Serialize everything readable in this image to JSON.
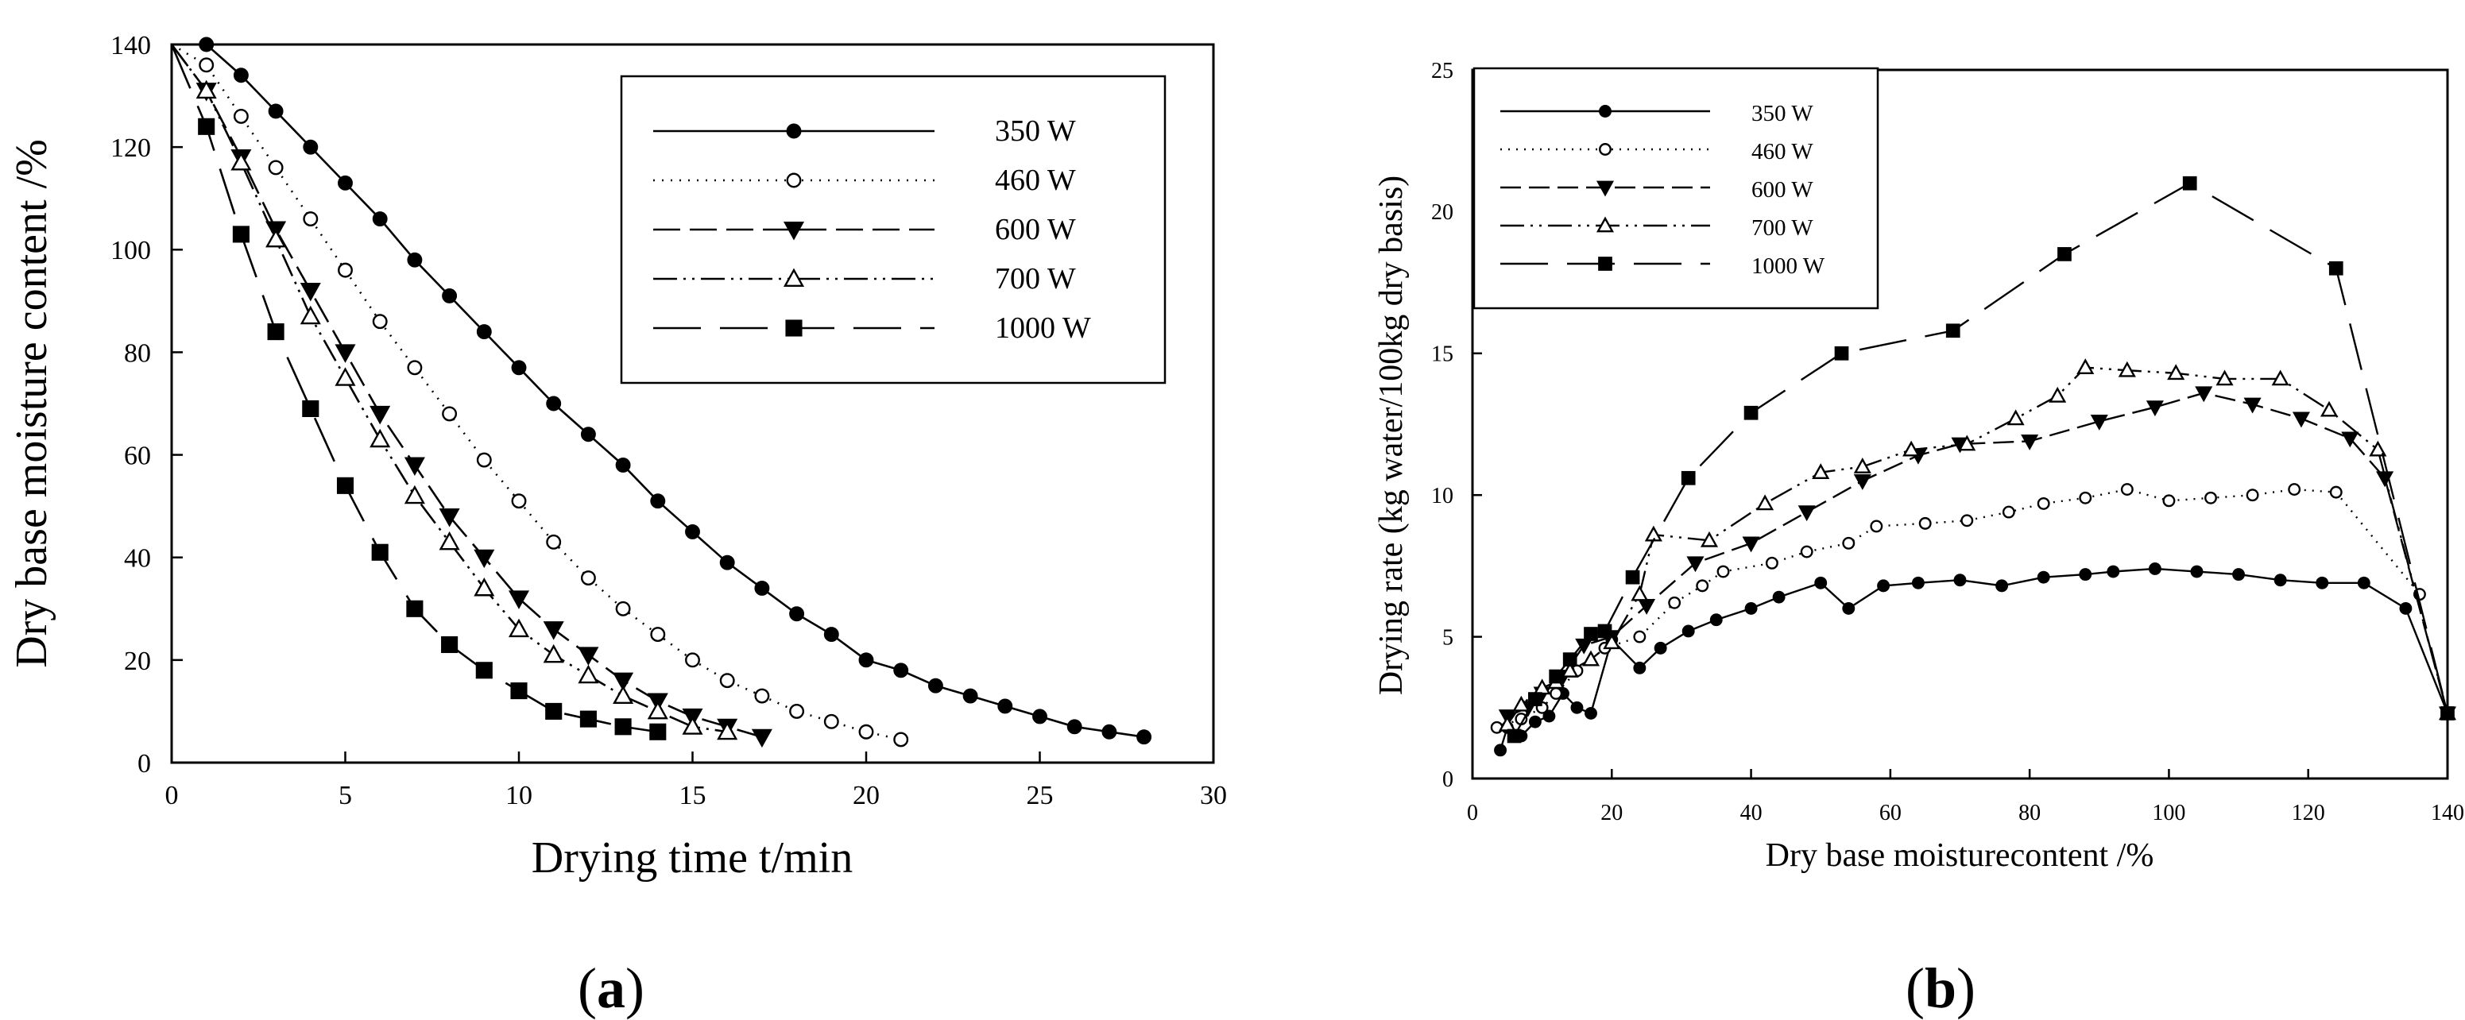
{
  "chart_data": [
    {
      "panel": "(a)",
      "panel_letter": "a",
      "type": "line",
      "title": "",
      "xlabel": "Drying time t/min",
      "ylabel": "Dry base moisture content /%",
      "xlim": [
        0,
        30
      ],
      "ylim": [
        0,
        140
      ],
      "xticks": [
        0,
        5,
        10,
        15,
        20,
        25,
        30
      ],
      "yticks": [
        0,
        20,
        40,
        60,
        80,
        100,
        120,
        140
      ],
      "grid": false,
      "legend_position": "top-right",
      "series": [
        {
          "name": "350 W",
          "marker": "filled-circle",
          "dash": "",
          "x": [
            0,
            1,
            2,
            3,
            4,
            5,
            6,
            7,
            8,
            9,
            10,
            11,
            12,
            13,
            14,
            15,
            16,
            17,
            18,
            19,
            20,
            21,
            22,
            23,
            24,
            25,
            26,
            27,
            28
          ],
          "y": [
            140,
            140,
            134,
            127,
            120,
            113,
            106,
            98,
            91,
            84,
            77,
            70,
            64,
            58,
            51,
            45,
            39,
            34,
            29,
            25,
            20,
            18,
            15,
            13,
            11,
            9,
            7,
            6,
            5
          ]
        },
        {
          "name": "460 W",
          "marker": "open-circle",
          "dash": "2 9",
          "x": [
            0,
            1,
            2,
            3,
            4,
            5,
            6,
            7,
            8,
            9,
            10,
            11,
            12,
            13,
            14,
            15,
            16,
            17,
            18,
            19,
            20,
            21
          ],
          "y": [
            140,
            136,
            126,
            116,
            106,
            96,
            86,
            77,
            68,
            59,
            51,
            43,
            36,
            30,
            25,
            20,
            16,
            13,
            10,
            8,
            6,
            4.5
          ]
        },
        {
          "name": "600 W",
          "marker": "filled-triangle-down",
          "dash": "34 12",
          "x": [
            0,
            1,
            2,
            3,
            4,
            5,
            6,
            7,
            8,
            9,
            10,
            11,
            12,
            13,
            14,
            15,
            16,
            17
          ],
          "y": [
            140,
            131,
            118,
            104,
            92,
            80,
            68,
            58,
            48,
            40,
            32,
            26,
            21,
            16,
            12,
            9,
            7,
            5
          ]
        },
        {
          "name": "700 W",
          "marker": "open-triangle-up",
          "dash": "30 8 3 8 3 8",
          "x": [
            0,
            1,
            2,
            3,
            4,
            5,
            6,
            7,
            8,
            9,
            10,
            11,
            12,
            13,
            14,
            15,
            16
          ],
          "y": [
            140,
            131,
            117,
            102,
            87,
            75,
            63,
            52,
            43,
            34,
            26,
            21,
            17,
            13,
            10,
            7,
            6
          ]
        },
        {
          "name": "1000 W",
          "marker": "filled-square",
          "dash": "60 24",
          "x": [
            0,
            1,
            2,
            3,
            4,
            5,
            6,
            7,
            8,
            9,
            10,
            11,
            12,
            13,
            14
          ],
          "y": [
            140,
            124,
            103,
            84,
            69,
            54,
            41,
            30,
            23,
            18,
            14,
            10,
            8.5,
            7,
            6
          ]
        }
      ]
    },
    {
      "panel": "(b)",
      "panel_letter": "b",
      "type": "line",
      "title": "",
      "xlabel": "Dry base moisturecontent /%",
      "ylabel": "Drying rate  (kg water/100kg dry basis)",
      "xlim": [
        0,
        140
      ],
      "ylim": [
        0,
        25
      ],
      "xticks": [
        0,
        20,
        40,
        60,
        80,
        100,
        120,
        140
      ],
      "yticks": [
        0,
        5,
        10,
        15,
        20,
        25
      ],
      "grid": false,
      "legend_position": "top-left",
      "series": [
        {
          "name": "350 W",
          "marker": "filled-circle",
          "dash": "",
          "x": [
            4,
            5,
            7,
            9,
            11,
            13,
            15,
            17,
            20,
            24,
            27,
            31,
            35,
            40,
            44,
            50,
            54,
            59,
            64,
            70,
            76,
            82,
            88,
            92,
            98,
            104,
            110,
            116,
            122,
            128,
            134,
            140
          ],
          "y": [
            1.0,
            1.8,
            1.5,
            2.0,
            2.2,
            3.0,
            2.5,
            2.3,
            4.9,
            3.9,
            4.6,
            5.2,
            5.6,
            6.0,
            6.4,
            6.9,
            6.0,
            6.8,
            6.9,
            7.0,
            6.8,
            7.1,
            7.2,
            7.3,
            7.4,
            7.3,
            7.2,
            7.0,
            6.9,
            6.9,
            6.0,
            2.3
          ]
        },
        {
          "name": "460 W",
          "marker": "open-circle",
          "dash": "2 8",
          "x": [
            3.5,
            7,
            10,
            12,
            15,
            19,
            24,
            29,
            33,
            36,
            43,
            48,
            54,
            58,
            65,
            71,
            77,
            82,
            88,
            94,
            100,
            106,
            112,
            118,
            124,
            136
          ],
          "y": [
            1.8,
            2.1,
            2.5,
            3.0,
            3.8,
            4.6,
            5.0,
            6.2,
            6.8,
            7.3,
            7.6,
            8.0,
            8.3,
            8.9,
            9.0,
            9.1,
            9.4,
            9.7,
            9.9,
            10.2,
            9.8,
            9.9,
            10.0,
            10.2,
            10.1,
            6.5
          ]
        },
        {
          "name": "600 W",
          "marker": "filled-triangle-down",
          "dash": "26 10",
          "x": [
            5,
            8,
            10,
            13,
            16,
            20,
            25,
            32,
            40,
            48,
            56,
            64,
            70,
            80,
            90,
            98,
            105,
            112,
            119,
            126,
            131,
            140
          ],
          "y": [
            2.2,
            2.5,
            3.0,
            3.6,
            4.7,
            5.0,
            6.1,
            7.6,
            8.3,
            9.4,
            10.5,
            11.4,
            11.8,
            11.9,
            12.6,
            13.1,
            13.6,
            13.2,
            12.7,
            12.0,
            10.6,
            2.3
          ]
        },
        {
          "name": "700 W",
          "marker": "open-triangle-up",
          "dash": "30 8 3 8 3 8",
          "x": [
            5,
            7,
            10,
            12,
            14,
            17,
            20,
            24,
            26,
            34,
            42,
            50,
            56,
            63,
            71,
            78,
            84,
            88,
            94,
            101,
            108,
            116,
            123,
            130,
            140
          ],
          "y": [
            1.9,
            2.6,
            3.2,
            3.4,
            3.8,
            4.2,
            4.8,
            6.5,
            8.6,
            8.4,
            9.7,
            10.8,
            11.0,
            11.6,
            11.8,
            12.7,
            13.5,
            14.5,
            14.4,
            14.3,
            14.1,
            14.1,
            13.0,
            11.6,
            2.3
          ]
        },
        {
          "name": "1000 W",
          "marker": "filled-square",
          "dash": "60 24",
          "x": [
            6,
            9,
            12,
            14,
            17,
            19,
            23,
            31,
            40,
            53,
            69,
            85,
            103,
            124,
            140
          ],
          "y": [
            1.5,
            2.8,
            3.6,
            4.2,
            5.1,
            5.2,
            7.1,
            10.6,
            12.9,
            15.0,
            15.8,
            18.5,
            21.0,
            18.0,
            2.3
          ]
        }
      ]
    }
  ]
}
